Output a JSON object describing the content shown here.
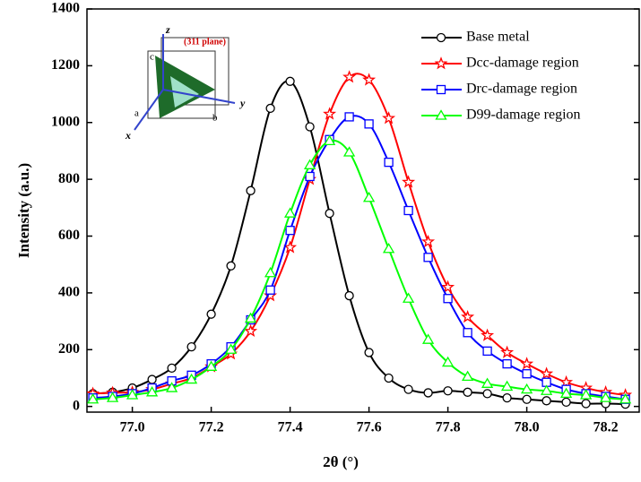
{
  "chart_data": {
    "type": "line",
    "x_label": "2θ (°)",
    "y_label": "Intensity (a.u.)",
    "x": [
      76.9,
      76.95,
      77.0,
      77.05,
      77.1,
      77.15,
      77.2,
      77.25,
      77.3,
      77.35,
      77.4,
      77.45,
      77.5,
      77.55,
      77.6,
      77.65,
      77.7,
      77.75,
      77.8,
      77.85,
      77.9,
      77.95,
      78.0,
      78.05,
      78.1,
      78.15,
      78.2,
      78.25
    ],
    "series": [
      {
        "name": "Base metal",
        "color": "#000000",
        "marker": "circle",
        "values": [
          45,
          50,
          65,
          95,
          135,
          210,
          325,
          495,
          760,
          1050,
          1145,
          985,
          680,
          390,
          190,
          100,
          60,
          48,
          55,
          50,
          45,
          30,
          25,
          20,
          15,
          10,
          10,
          8
        ]
      },
      {
        "name": "Dcc-damage region",
        "color": "#ff0000",
        "marker": "star",
        "values": [
          45,
          48,
          50,
          60,
          80,
          100,
          140,
          185,
          265,
          390,
          560,
          800,
          1030,
          1160,
          1150,
          1015,
          790,
          580,
          420,
          315,
          250,
          190,
          150,
          115,
          85,
          65,
          50,
          40
        ]
      },
      {
        "name": "Drc-damage region",
        "color": "#0000ff",
        "marker": "square",
        "values": [
          30,
          35,
          45,
          65,
          90,
          110,
          150,
          210,
          305,
          410,
          620,
          810,
          940,
          1020,
          995,
          860,
          690,
          525,
          380,
          260,
          195,
          150,
          115,
          85,
          60,
          45,
          35,
          25
        ]
      },
      {
        "name": "D99-damage region",
        "color": "#00ff00",
        "marker": "triangle",
        "values": [
          25,
          30,
          40,
          50,
          65,
          95,
          140,
          200,
          310,
          470,
          680,
          850,
          935,
          895,
          735,
          555,
          380,
          235,
          155,
          105,
          80,
          70,
          60,
          55,
          45,
          40,
          30,
          25
        ]
      }
    ],
    "xlim": [
      76.885,
      78.285
    ],
    "ylim": [
      -20,
      1400
    ],
    "xticks": [
      {
        "value": 77,
        "label": "77.0"
      },
      77.2,
      77.4,
      77.6,
      77.8,
      {
        "value": 78,
        "label": "78.0"
      },
      78.2
    ],
    "yticks": [
      0,
      200,
      400,
      600,
      800,
      1000,
      1200,
      1400
    ],
    "legend": "upper right",
    "inset": {
      "title": "(311 plane)",
      "labels": [
        "z",
        "y",
        "x",
        "a",
        "b",
        "c"
      ]
    }
  }
}
